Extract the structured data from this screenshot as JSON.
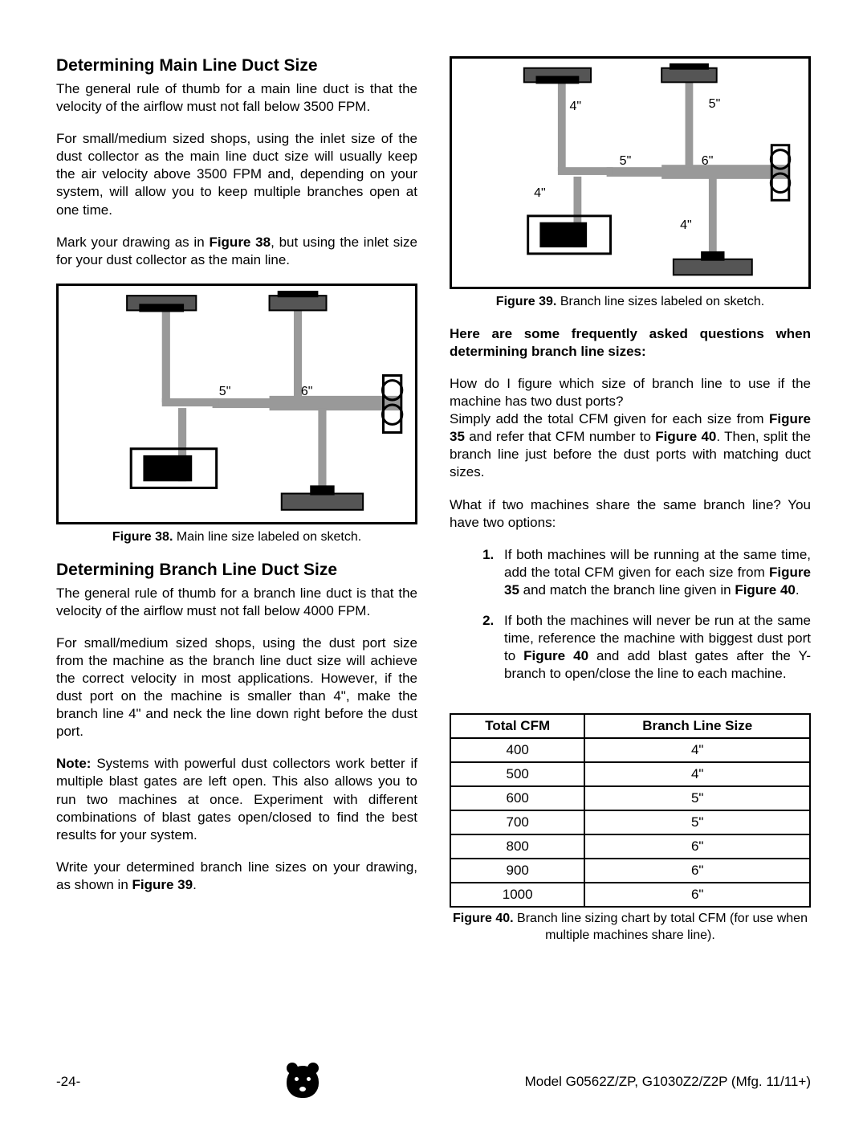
{
  "left": {
    "h1": "Determining Main Line Duct Size",
    "p1": "The general rule of thumb for a main line duct is that the velocity of the airflow must not fall below 3500 FPM.",
    "p2": "For small/medium sized shops, using the inlet size of the dust collector as the main line duct size will usually keep the air velocity above 3500 FPM and, depending on your system, will allow you to keep multiple branches open at one time.",
    "p3a": "Mark your drawing as in ",
    "p3b": "Figure 38",
    "p3c": ", but using the inlet size for your dust collector as the main line.",
    "fig38_cap_a": "Figure 38.",
    "fig38_cap_b": " Main line size labeled on sketch.",
    "fig38_labels": {
      "a": "5\"",
      "b": "6\""
    },
    "h2": "Determining Branch Line Duct Size",
    "p4": "The general rule of thumb for a branch line duct is that the velocity of the airflow must not fall below 4000 FPM.",
    "p5": "For small/medium sized shops, using the dust port size from the machine as the branch line duct size will achieve the correct velocity in most applications. However, if the dust port on the machine is smaller than 4\", make the branch line 4\" and neck the line down right before the dust port.",
    "p6a": "Note:",
    "p6b": " Systems with powerful dust collectors work better if multiple blast gates are left open. This also allows you to run two machines at once. Experiment with different combinations of blast gates open/closed to find the best results for your system.",
    "p7a": "Write your determined branch line sizes on your drawing, as shown in ",
    "p7b": "Figure 39",
    "p7c": "."
  },
  "right": {
    "fig39_cap_a": "Figure 39.",
    "fig39_cap_b": " Branch line sizes labeled on sketch.",
    "fig39_labels": {
      "a": "4\"",
      "b": "5\"",
      "c": "5\"",
      "d": "6\"",
      "e": "4\"",
      "f": "4\""
    },
    "faq_head": "Here are some frequently asked questions when determining branch line sizes:",
    "q1": "How do I figure which size of branch line to use if the machine has two dust ports?",
    "a1a": "Simply add the total CFM given for each size from ",
    "a1b": "Figure 35",
    "a1c": " and refer that CFM number to ",
    "a1d": "Figure 40",
    "a1e": ". Then, split the branch line just before the dust ports with matching duct sizes.",
    "q2": "What if two machines share the same branch line?  You have two options:",
    "li1a": "If both machines will be running at the same time, add the total CFM given for each size from ",
    "li1b": "Figure 35",
    "li1c": " and match the branch line given in ",
    "li1d": "Figure 40",
    "li1e": ".",
    "li2a": "If both the machines will never be run at the same time, reference the machine with biggest dust port to ",
    "li2b": "Figure 40",
    "li2c": " and add blast gates after the Y-branch to open/close the line to each machine.",
    "table": {
      "h1": "Total CFM",
      "h2": "Branch Line Size",
      "rows": [
        [
          "400",
          "4\""
        ],
        [
          "500",
          "4\""
        ],
        [
          "600",
          "5\""
        ],
        [
          "700",
          "5\""
        ],
        [
          "800",
          "6\""
        ],
        [
          "900",
          "6\""
        ],
        [
          "1000",
          "6\""
        ]
      ]
    },
    "fig40_cap_a": "Figure 40.",
    "fig40_cap_b": " Branch line sizing chart by total CFM (for use when multiple machines share line)."
  },
  "footer": {
    "page": "-24-",
    "model": "Model G0562Z/ZP, G1030Z2/Z2P  (Mfg. 11/11+)"
  },
  "diagram_colors": {
    "duct": "#999999",
    "duct_dark": "#555555",
    "machine_fill": "#333333",
    "border": "#000000"
  }
}
